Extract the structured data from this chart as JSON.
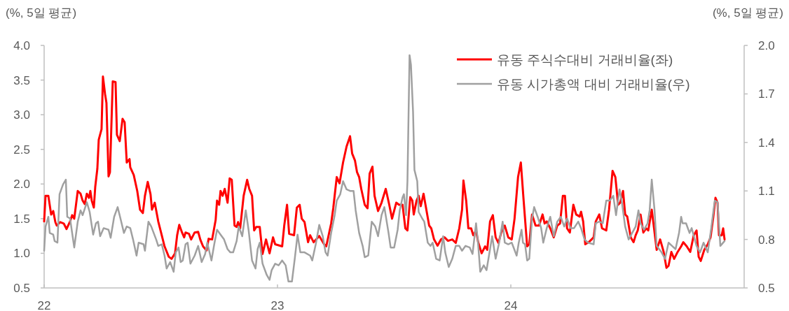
{
  "chart_data": {
    "type": "line",
    "ylabel": "(%, 5일 평균)",
    "y2label": "(%, 5일 평균)",
    "legend": "top right",
    "grid": false,
    "xlim": [
      22,
      25
    ],
    "xticks": [
      22,
      23,
      24
    ],
    "ylim": [
      0.5,
      4
    ],
    "yticks": [
      0.5,
      {
        "value": 1,
        "label": "1.0"
      },
      1.5,
      {
        "value": 2,
        "label": "2.0"
      },
      2.5,
      {
        "value": 3,
        "label": "3.0"
      },
      3.5,
      {
        "value": 4,
        "label": "4.0"
      }
    ],
    "y2lim": [
      0.5,
      2
    ],
    "y2ticks": [
      0.5,
      0.8,
      1.1,
      1.4,
      1.7,
      {
        "value": 2,
        "label": "2.0"
      }
    ],
    "series": [
      {
        "name": "유동 주식수대비 거래비율(좌)",
        "color": "#ff0000",
        "axis": "y",
        "x": [
          22.0,
          22.006,
          22.018,
          22.03,
          22.039,
          22.048,
          22.054,
          22.069,
          22.084,
          22.096,
          22.111,
          22.12,
          22.129,
          22.144,
          22.156,
          22.165,
          22.174,
          22.183,
          22.192,
          22.198,
          22.204,
          22.213,
          22.219,
          22.228,
          22.234,
          22.246,
          22.252,
          22.261,
          22.267,
          22.276,
          22.282,
          22.294,
          22.306,
          22.312,
          22.324,
          22.336,
          22.345,
          22.354,
          22.366,
          22.369,
          22.384,
          22.399,
          22.411,
          22.423,
          22.432,
          22.444,
          22.456,
          22.462,
          22.474,
          22.489,
          22.501,
          22.516,
          22.534,
          22.546,
          22.561,
          22.57,
          22.579,
          22.591,
          22.6,
          22.606,
          22.621,
          22.63,
          22.645,
          22.66,
          22.669,
          22.681,
          22.696,
          22.705,
          22.72,
          22.735,
          22.741,
          22.75,
          22.756,
          22.765,
          22.774,
          22.786,
          22.795,
          22.804,
          22.816,
          22.825,
          22.831,
          22.84,
          22.855,
          22.87,
          22.879,
          22.891,
          22.9,
          22.909,
          22.924,
          22.936,
          22.951,
          22.966,
          22.981,
          22.99,
          23.02,
          23.029,
          23.041,
          23.05,
          23.071,
          23.083,
          23.095,
          23.104,
          23.116,
          23.131,
          23.14,
          23.155,
          23.179,
          23.2,
          23.209,
          23.23,
          23.239,
          23.254,
          23.266,
          23.281,
          23.296,
          23.311,
          23.32,
          23.332,
          23.341,
          23.35,
          23.359,
          23.374,
          23.386,
          23.395,
          23.407,
          23.416,
          23.431,
          23.446,
          23.464,
          23.479,
          23.491,
          23.509,
          23.521,
          23.536,
          23.548,
          23.557,
          23.569,
          23.578,
          23.584,
          23.596,
          23.605,
          23.614,
          23.626,
          23.638,
          23.65,
          23.659,
          23.671,
          23.686,
          23.701,
          23.716,
          23.731,
          23.749,
          23.764,
          23.779,
          23.791,
          23.797,
          23.809,
          23.818,
          23.83,
          23.839,
          23.851,
          23.86,
          23.875,
          23.89,
          23.899,
          23.911,
          23.923,
          23.935,
          23.947,
          23.959,
          23.974,
          23.989,
          24.004,
          24.016,
          24.031,
          24.043,
          24.055,
          24.07,
          24.079,
          24.091,
          24.106,
          24.121,
          24.136,
          24.145,
          24.154,
          24.169,
          24.184,
          24.199,
          24.211,
          24.223,
          24.232,
          24.241,
          24.253,
          24.268,
          24.28,
          24.295,
          24.301,
          24.31,
          24.319,
          24.334,
          24.355,
          24.364,
          24.379,
          24.391,
          24.409,
          24.421,
          24.436,
          24.448,
          24.46,
          24.469,
          24.481,
          24.49,
          24.499,
          24.514,
          24.526,
          24.535,
          24.544,
          24.556,
          24.568,
          24.58,
          24.589,
          24.604,
          24.616,
          24.625,
          24.64,
          24.655,
          24.667,
          24.676,
          24.688,
          24.7,
          24.715,
          24.73,
          24.739,
          24.754,
          24.769,
          24.784,
          24.796,
          24.805,
          24.814,
          24.829,
          24.844,
          24.856,
          24.868,
          24.877,
          24.886,
          24.892,
          24.904,
          24.91,
          24.916
        ],
        "values": [
          1.46,
          1.83,
          1.83,
          1.56,
          1.61,
          1.45,
          1.4,
          1.45,
          1.43,
          1.35,
          1.46,
          1.55,
          1.5,
          1.9,
          1.86,
          1.76,
          1.71,
          1.86,
          1.8,
          1.9,
          1.76,
          1.66,
          1.96,
          2.22,
          2.64,
          2.79,
          3.55,
          3.3,
          3.17,
          2.11,
          2.17,
          3.48,
          3.47,
          2.71,
          2.62,
          2.94,
          2.89,
          2.31,
          2.36,
          2.24,
          2.13,
          1.9,
          1.63,
          1.58,
          1.83,
          2.03,
          1.85,
          1.63,
          1.73,
          1.46,
          1.3,
          1.1,
          0.95,
          0.92,
          1.0,
          1.26,
          1.41,
          1.3,
          1.23,
          1.3,
          1.28,
          1.2,
          1.3,
          1.31,
          1.2,
          1.1,
          1.04,
          1.21,
          1.2,
          1.48,
          1.76,
          1.7,
          1.9,
          1.83,
          1.93,
          1.73,
          2.08,
          2.06,
          1.4,
          1.38,
          1.45,
          1.36,
          1.83,
          2.06,
          1.93,
          1.83,
          1.33,
          1.38,
          1.38,
          0.99,
          1.2,
          1.0,
          1.23,
          1.13,
          1.1,
          1.4,
          1.7,
          1.28,
          1.26,
          1.66,
          1.7,
          1.5,
          1.45,
          1.16,
          1.26,
          1.16,
          1.25,
          1.13,
          1.1,
          1.43,
          1.65,
          2.1,
          2.01,
          2.31,
          2.54,
          2.69,
          2.44,
          2.34,
          2.17,
          2.1,
          1.93,
          1.7,
          1.65,
          2.15,
          2.25,
          1.83,
          1.61,
          1.73,
          1.93,
          1.7,
          1.5,
          1.73,
          1.7,
          1.7,
          1.36,
          1.33,
          1.81,
          1.76,
          1.56,
          1.76,
          1.83,
          1.68,
          1.86,
          1.63,
          1.4,
          1.36,
          1.2,
          1.11,
          1.2,
          1.23,
          1.18,
          1.2,
          1.15,
          1.36,
          1.63,
          2.05,
          1.75,
          1.36,
          1.36,
          1.26,
          1.33,
          1.16,
          1.0,
          1.1,
          1.05,
          1.46,
          1.55,
          1.23,
          1.15,
          1.3,
          1.4,
          1.23,
          1.2,
          1.5,
          2.1,
          2.31,
          1.76,
          1.1,
          1.13,
          1.56,
          1.4,
          1.4,
          1.56,
          1.43,
          1.46,
          1.36,
          1.23,
          1.4,
          1.43,
          1.83,
          1.83,
          1.36,
          1.3,
          1.7,
          1.56,
          1.53,
          1.6,
          1.46,
          1.13,
          1.16,
          1.23,
          1.46,
          1.56,
          1.36,
          1.33,
          1.63,
          2.19,
          2.1,
          1.7,
          1.73,
          1.9,
          1.56,
          1.53,
          1.23,
          1.16,
          1.26,
          1.33,
          1.56,
          1.3,
          1.36,
          1.33,
          1.63,
          1.3,
          1.05,
          1.2,
          1.02,
          0.79,
          0.82,
          1.02,
          0.92,
          1.02,
          1.1,
          1.16,
          1.1,
          1.02,
          1.26,
          1.33,
          0.95,
          0.89,
          1.05,
          1.13,
          1.23,
          1.53,
          1.8,
          1.73,
          1.26,
          1.26,
          1.36,
          1.2
        ]
      },
      {
        "name": "유동 시가총액 대비 거래비율(우)",
        "color": "#a0a0a0",
        "axis": "y2",
        "x": [
          22.0,
          22.006,
          22.018,
          22.024,
          22.039,
          22.045,
          22.057,
          22.066,
          22.081,
          22.093,
          22.099,
          22.111,
          22.129,
          22.144,
          22.156,
          22.165,
          22.183,
          22.195,
          22.21,
          22.222,
          22.231,
          22.24,
          22.255,
          22.276,
          22.285,
          22.3,
          22.315,
          22.327,
          22.342,
          22.354,
          22.369,
          22.381,
          22.396,
          22.405,
          22.426,
          22.432,
          22.447,
          22.459,
          22.48,
          22.489,
          22.504,
          22.516,
          22.525,
          22.54,
          22.555,
          22.564,
          22.576,
          22.585,
          22.594,
          22.606,
          22.615,
          22.627,
          22.645,
          22.66,
          22.675,
          22.69,
          22.699,
          22.717,
          22.729,
          22.741,
          22.756,
          22.771,
          22.786,
          22.798,
          22.81,
          22.825,
          22.834,
          22.849,
          22.864,
          22.876,
          22.891,
          22.906,
          22.915,
          22.924,
          22.936,
          22.954,
          22.966,
          22.975,
          22.99,
          23.005,
          23.02,
          23.035,
          23.047,
          23.062,
          23.074,
          23.086,
          23.098,
          23.116,
          23.14,
          23.149,
          23.164,
          23.179,
          23.194,
          23.206,
          23.215,
          23.23,
          23.245,
          23.254,
          23.269,
          23.281,
          23.296,
          23.311,
          23.326,
          23.335,
          23.35,
          23.365,
          23.374,
          23.389,
          23.404,
          23.419,
          23.431,
          23.446,
          23.458,
          23.476,
          23.485,
          23.5,
          23.515,
          23.524,
          23.536,
          23.542,
          23.551,
          23.557,
          23.566,
          23.572,
          23.581,
          23.587,
          23.599,
          23.605,
          23.62,
          23.629,
          23.644,
          23.656,
          23.665,
          23.68,
          23.695,
          23.71,
          23.719,
          23.734,
          23.749,
          23.764,
          23.779,
          23.791,
          23.806,
          23.824,
          23.836,
          23.851,
          23.86,
          23.869,
          23.884,
          23.896,
          23.911,
          23.92,
          23.935,
          23.95,
          23.965,
          23.974,
          23.989,
          24.004,
          24.025,
          24.034,
          24.046,
          24.052,
          24.061,
          24.07,
          24.079,
          24.091,
          24.1,
          24.115,
          24.13,
          24.139,
          24.154,
          24.169,
          24.184,
          24.199,
          24.214,
          24.229,
          24.241,
          24.256,
          24.271,
          24.289,
          24.301,
          24.316,
          24.331,
          24.355,
          24.364,
          24.379,
          24.394,
          24.409,
          24.424,
          24.439,
          24.451,
          24.466,
          24.475,
          24.49,
          24.505,
          24.52,
          24.535,
          24.547,
          24.556,
          24.571,
          24.586,
          24.595,
          24.604,
          24.616,
          24.625,
          24.646,
          24.661,
          24.676,
          24.691,
          24.706,
          24.721,
          24.73,
          24.736,
          24.751,
          24.766,
          24.775,
          24.796,
          24.811,
          24.826,
          24.844,
          24.859,
          24.874,
          24.886,
          24.898,
          24.916
        ],
        "values": [
          0.73,
          0.88,
          0.94,
          0.84,
          0.83,
          0.79,
          0.78,
          1.08,
          1.14,
          1.17,
          0.94,
          0.93,
          0.75,
          0.91,
          0.98,
          0.95,
          1.03,
          0.97,
          0.83,
          0.9,
          0.91,
          0.82,
          0.87,
          0.86,
          0.81,
          0.94,
          1.0,
          0.93,
          0.84,
          0.88,
          0.87,
          0.8,
          0.7,
          0.78,
          0.77,
          0.73,
          0.91,
          0.88,
          0.8,
          0.76,
          0.77,
          0.7,
          0.62,
          0.66,
          0.6,
          0.72,
          0.75,
          0.66,
          0.67,
          0.77,
          0.78,
          0.65,
          0.7,
          0.76,
          0.66,
          0.71,
          0.78,
          0.67,
          0.77,
          0.86,
          0.83,
          0.8,
          0.74,
          0.72,
          0.72,
          0.79,
          0.88,
          0.82,
          0.98,
          0.86,
          0.67,
          0.62,
          0.74,
          0.78,
          0.65,
          0.58,
          0.55,
          0.61,
          0.65,
          0.64,
          0.67,
          0.64,
          0.54,
          0.54,
          0.68,
          0.83,
          0.72,
          0.72,
          0.7,
          0.67,
          0.77,
          0.89,
          0.82,
          0.72,
          0.7,
          0.84,
          0.95,
          1.04,
          1.08,
          1.16,
          1.11,
          1.1,
          1.1,
          0.98,
          0.84,
          0.76,
          0.69,
          0.7,
          0.91,
          0.88,
          0.82,
          0.95,
          1.0,
          0.84,
          0.75,
          0.75,
          0.86,
          0.98,
          1.06,
          1.08,
          0.95,
          1.16,
          1.94,
          1.88,
          1.59,
          1.23,
          1.16,
          0.97,
          0.93,
          0.91,
          0.78,
          0.76,
          0.78,
          0.68,
          0.67,
          0.82,
          0.72,
          0.63,
          0.68,
          0.76,
          0.76,
          0.73,
          0.76,
          0.75,
          0.71,
          0.9,
          0.77,
          0.6,
          0.64,
          0.61,
          0.74,
          0.82,
          0.68,
          0.78,
          0.91,
          0.78,
          0.77,
          0.78,
          0.7,
          0.78,
          0.86,
          0.78,
          0.77,
          0.67,
          0.68,
          0.93,
          1.0,
          0.94,
          0.87,
          0.78,
          0.87,
          0.94,
          0.82,
          0.91,
          0.94,
          0.88,
          0.93,
          0.87,
          0.87,
          0.91,
          0.87,
          0.8,
          0.78,
          0.77,
          0.9,
          0.91,
          0.9,
          1.04,
          1.04,
          1.07,
          0.95,
          1.11,
          1.04,
          0.88,
          0.8,
          0.84,
          0.88,
          0.98,
          0.9,
          0.86,
          0.9,
          0.98,
          1.17,
          0.98,
          0.76,
          0.72,
          0.68,
          0.78,
          0.76,
          0.74,
          0.84,
          0.94,
          0.9,
          0.9,
          0.84,
          0.87,
          0.76,
          0.72,
          0.78,
          0.72,
          0.87,
          1.04,
          1.03,
          0.76,
          0.79
        ]
      }
    ]
  }
}
